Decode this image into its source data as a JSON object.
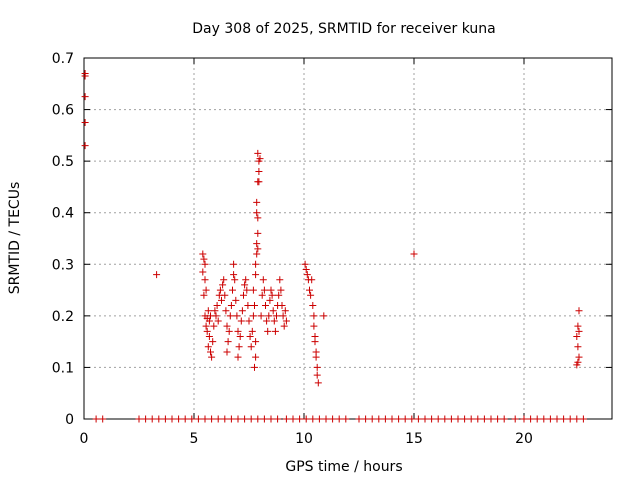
{
  "chart_data": {
    "type": "scatter",
    "title": "Day 308 of 2025, SRMTID for receiver kuna",
    "xlabel": "GPS time / hours",
    "ylabel": "SRMTID / TECUs",
    "xlim": [
      0,
      24
    ],
    "ylim": [
      0,
      0.7
    ],
    "xticks": [
      0,
      5,
      10,
      15,
      20
    ],
    "yticks": [
      0,
      0.1,
      0.2,
      0.3,
      0.4,
      0.5,
      0.6,
      0.7
    ],
    "ytick_labels": [
      "0",
      "0.1",
      "0.2",
      "0.3",
      "0.4",
      "0.5",
      "0.6",
      "0.7"
    ],
    "grid": true,
    "marker": "+",
    "color": "#cc0000",
    "points": [
      [
        0.05,
        0.67
      ],
      [
        0.05,
        0.665
      ],
      [
        0.05,
        0.625
      ],
      [
        0.05,
        0.575
      ],
      [
        0.05,
        0.53
      ],
      [
        3.3,
        0.28
      ],
      [
        15.0,
        0.32
      ],
      [
        5.4,
        0.32
      ],
      [
        5.45,
        0.31
      ],
      [
        5.5,
        0.3
      ],
      [
        5.4,
        0.285
      ],
      [
        5.5,
        0.27
      ],
      [
        5.55,
        0.25
      ],
      [
        5.45,
        0.24
      ],
      [
        5.5,
        0.2
      ],
      [
        5.6,
        0.195
      ],
      [
        5.65,
        0.21
      ],
      [
        5.7,
        0.19
      ],
      [
        5.55,
        0.18
      ],
      [
        5.75,
        0.2
      ],
      [
        5.6,
        0.17
      ],
      [
        5.7,
        0.16
      ],
      [
        5.65,
        0.14
      ],
      [
        5.75,
        0.13
      ],
      [
        5.8,
        0.12
      ],
      [
        5.85,
        0.15
      ],
      [
        5.9,
        0.18
      ],
      [
        5.95,
        0.21
      ],
      [
        6.0,
        0.2
      ],
      [
        6.05,
        0.22
      ],
      [
        6.1,
        0.19
      ],
      [
        6.15,
        0.24
      ],
      [
        6.2,
        0.25
      ],
      [
        6.25,
        0.23
      ],
      [
        6.3,
        0.26
      ],
      [
        6.35,
        0.27
      ],
      [
        6.4,
        0.24
      ],
      [
        6.45,
        0.21
      ],
      [
        6.5,
        0.18
      ],
      [
        6.55,
        0.15
      ],
      [
        6.5,
        0.13
      ],
      [
        6.6,
        0.17
      ],
      [
        6.65,
        0.2
      ],
      [
        6.7,
        0.22
      ],
      [
        6.75,
        0.25
      ],
      [
        6.8,
        0.28
      ],
      [
        6.8,
        0.3
      ],
      [
        6.85,
        0.27
      ],
      [
        6.9,
        0.23
      ],
      [
        6.95,
        0.2
      ],
      [
        7.0,
        0.17
      ],
      [
        7.05,
        0.14
      ],
      [
        7.0,
        0.12
      ],
      [
        7.1,
        0.16
      ],
      [
        7.15,
        0.19
      ],
      [
        7.2,
        0.21
      ],
      [
        7.25,
        0.24
      ],
      [
        7.3,
        0.26
      ],
      [
        7.35,
        0.27
      ],
      [
        7.4,
        0.25
      ],
      [
        7.45,
        0.22
      ],
      [
        7.5,
        0.19
      ],
      [
        7.55,
        0.16
      ],
      [
        7.6,
        0.14
      ],
      [
        7.65,
        0.17
      ],
      [
        7.7,
        0.2
      ],
      [
        7.75,
        0.22
      ],
      [
        7.7,
        0.25
      ],
      [
        7.8,
        0.28
      ],
      [
        7.8,
        0.3
      ],
      [
        7.85,
        0.32
      ],
      [
        7.85,
        0.34
      ],
      [
        7.9,
        0.36
      ],
      [
        7.9,
        0.39
      ],
      [
        7.85,
        0.42
      ],
      [
        7.9,
        0.46
      ],
      [
        7.95,
        0.48
      ],
      [
        7.95,
        0.5
      ],
      [
        7.9,
        0.515
      ],
      [
        8.0,
        0.505
      ],
      [
        7.95,
        0.46
      ],
      [
        7.85,
        0.4
      ],
      [
        7.9,
        0.33
      ],
      [
        7.8,
        0.12
      ],
      [
        7.75,
        0.1
      ],
      [
        7.8,
        0.15
      ],
      [
        8.05,
        0.2
      ],
      [
        8.1,
        0.24
      ],
      [
        8.15,
        0.27
      ],
      [
        8.2,
        0.25
      ],
      [
        8.25,
        0.22
      ],
      [
        8.3,
        0.19
      ],
      [
        8.35,
        0.17
      ],
      [
        8.4,
        0.2
      ],
      [
        8.45,
        0.23
      ],
      [
        8.5,
        0.25
      ],
      [
        8.55,
        0.24
      ],
      [
        8.6,
        0.21
      ],
      [
        8.65,
        0.19
      ],
      [
        8.7,
        0.17
      ],
      [
        8.75,
        0.2
      ],
      [
        8.8,
        0.22
      ],
      [
        8.85,
        0.24
      ],
      [
        8.9,
        0.27
      ],
      [
        8.95,
        0.25
      ],
      [
        9.0,
        0.22
      ],
      [
        9.05,
        0.2
      ],
      [
        9.1,
        0.18
      ],
      [
        9.15,
        0.21
      ],
      [
        9.2,
        0.19
      ],
      [
        10.05,
        0.3
      ],
      [
        10.1,
        0.29
      ],
      [
        10.15,
        0.28
      ],
      [
        10.2,
        0.27
      ],
      [
        10.25,
        0.25
      ],
      [
        10.3,
        0.24
      ],
      [
        10.35,
        0.27
      ],
      [
        10.4,
        0.22
      ],
      [
        10.45,
        0.2
      ],
      [
        10.5,
        0.16
      ],
      [
        10.55,
        0.13
      ],
      [
        10.6,
        0.1
      ],
      [
        10.6,
        0.085
      ],
      [
        10.65,
        0.07
      ],
      [
        10.55,
        0.12
      ],
      [
        10.5,
        0.15
      ],
      [
        10.45,
        0.18
      ],
      [
        10.9,
        0.2
      ],
      [
        22.5,
        0.21
      ],
      [
        22.45,
        0.18
      ],
      [
        22.5,
        0.17
      ],
      [
        22.4,
        0.16
      ],
      [
        22.45,
        0.14
      ],
      [
        22.5,
        0.12
      ],
      [
        22.45,
        0.11
      ],
      [
        22.4,
        0.105
      ],
      [
        0.55,
        0
      ],
      [
        0.85,
        0
      ],
      [
        2.5,
        0
      ],
      [
        2.8,
        0
      ],
      [
        3.1,
        0
      ],
      [
        3.4,
        0
      ],
      [
        3.7,
        0
      ],
      [
        4.0,
        0
      ],
      [
        4.3,
        0
      ],
      [
        4.6,
        0
      ],
      [
        4.9,
        0
      ],
      [
        5.2,
        0
      ],
      [
        5.5,
        0
      ],
      [
        5.8,
        0
      ],
      [
        6.1,
        0
      ],
      [
        6.4,
        0
      ],
      [
        6.7,
        0
      ],
      [
        7.0,
        0
      ],
      [
        7.3,
        0
      ],
      [
        7.6,
        0
      ],
      [
        7.9,
        0
      ],
      [
        8.2,
        0
      ],
      [
        8.5,
        0
      ],
      [
        8.8,
        0
      ],
      [
        9.2,
        0
      ],
      [
        9.5,
        0
      ],
      [
        9.8,
        0
      ],
      [
        10.1,
        0
      ],
      [
        10.4,
        0
      ],
      [
        10.7,
        0
      ],
      [
        11.0,
        0
      ],
      [
        11.3,
        0
      ],
      [
        11.6,
        0
      ],
      [
        11.9,
        0
      ],
      [
        12.5,
        0
      ],
      [
        12.8,
        0
      ],
      [
        13.1,
        0
      ],
      [
        13.4,
        0
      ],
      [
        13.7,
        0
      ],
      [
        14.0,
        0
      ],
      [
        14.3,
        0
      ],
      [
        14.6,
        0
      ],
      [
        14.9,
        0
      ],
      [
        15.2,
        0
      ],
      [
        15.5,
        0
      ],
      [
        15.8,
        0
      ],
      [
        16.1,
        0
      ],
      [
        16.4,
        0
      ],
      [
        16.7,
        0
      ],
      [
        17.0,
        0
      ],
      [
        17.3,
        0
      ],
      [
        17.6,
        0
      ],
      [
        17.9,
        0
      ],
      [
        18.2,
        0
      ],
      [
        18.5,
        0
      ],
      [
        18.8,
        0
      ],
      [
        19.1,
        0
      ],
      [
        19.6,
        0
      ],
      [
        20.0,
        0
      ],
      [
        20.3,
        0
      ],
      [
        20.6,
        0
      ],
      [
        20.9,
        0
      ],
      [
        21.2,
        0
      ],
      [
        21.5,
        0
      ],
      [
        21.8,
        0
      ],
      [
        22.1,
        0
      ],
      [
        22.4,
        0
      ],
      [
        22.7,
        0
      ]
    ]
  }
}
